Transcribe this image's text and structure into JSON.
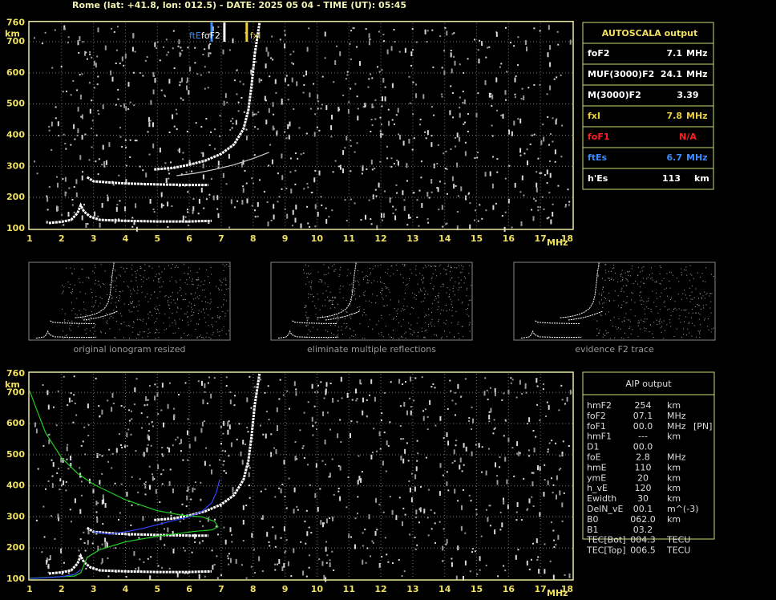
{
  "header": {
    "title": "Rome (lat: +41.8, lon: 012.5) - DATE: 2025 05 04 - TIME (UT): 05:45"
  },
  "ionograms": [
    {
      "xlim": [
        1,
        18
      ],
      "ylim": [
        100,
        760
      ],
      "xticks": [
        1,
        2,
        3,
        4,
        5,
        6,
        7,
        8,
        9,
        10,
        11,
        12,
        13,
        14,
        15,
        16,
        17,
        18
      ],
      "yticks": [
        100,
        200,
        300,
        400,
        500,
        600,
        700,
        760
      ],
      "x_unit": "MHz",
      "y_unit": "km",
      "markers": [
        "ftE",
        "foF2",
        "fxI"
      ],
      "traces": [
        {
          "color": "#ffffff",
          "x": [
            1.6,
            2.0,
            2.3,
            2.5,
            2.6,
            2.7,
            2.9,
            3.2,
            4,
            5,
            6,
            6.7
          ],
          "y": [
            118,
            122,
            128,
            150,
            175,
            155,
            138,
            128,
            125,
            123,
            123,
            125
          ]
        },
        {
          "color": "#ffffff",
          "x": [
            2.8,
            3.0,
            3.5,
            4,
            5,
            6,
            6.6
          ],
          "y": [
            265,
            252,
            248,
            245,
            242,
            240,
            240
          ]
        },
        {
          "color": "#ffffff",
          "x": [
            4.9,
            5.5,
            6.0,
            6.5,
            7.0,
            7.4,
            7.7,
            7.85,
            7.95,
            8.05,
            8.2
          ],
          "y": [
            290,
            295,
            305,
            318,
            340,
            370,
            420,
            480,
            560,
            660,
            760
          ]
        },
        {
          "color": "#cccccc",
          "x": [
            5.6,
            6.2,
            6.8,
            7.4,
            8.0,
            8.5
          ],
          "y": [
            270,
            278,
            290,
            305,
            325,
            345
          ]
        }
      ]
    },
    {
      "xlim": [
        1,
        18
      ],
      "ylim": [
        100,
        760
      ],
      "xticks": [
        1,
        2,
        3,
        4,
        5,
        6,
        7,
        8,
        9,
        10,
        11,
        12,
        13,
        14,
        15,
        16,
        17,
        18
      ],
      "yticks": [
        100,
        200,
        300,
        400,
        500,
        600,
        700,
        760
      ],
      "x_unit": "MHz",
      "y_unit": "km",
      "traces": [
        {
          "color": "#ffffff",
          "x": [
            1.6,
            2.0,
            2.3,
            2.5,
            2.6,
            2.7,
            2.9,
            3.2,
            4,
            5,
            6,
            6.7
          ],
          "y": [
            118,
            122,
            128,
            150,
            175,
            155,
            138,
            128,
            125,
            123,
            123,
            125
          ]
        },
        {
          "color": "#ffffff",
          "x": [
            2.8,
            3.0,
            3.5,
            4,
            5,
            6,
            6.6
          ],
          "y": [
            265,
            252,
            248,
            245,
            242,
            240,
            240
          ]
        },
        {
          "color": "#ffffff",
          "x": [
            4.9,
            5.5,
            6.0,
            6.5,
            7.0,
            7.4,
            7.7,
            7.85,
            7.95,
            8.05,
            8.2
          ],
          "y": [
            290,
            295,
            305,
            318,
            340,
            370,
            420,
            480,
            560,
            660,
            760
          ]
        },
        {
          "color": "#22cc22",
          "x": [
            1.0,
            1.2,
            1.5,
            2.0,
            2.5,
            3.0,
            4.0,
            5.0,
            5.8,
            6.4,
            6.8,
            6.9,
            6.7,
            6.2,
            5.0,
            4.0,
            3.2,
            2.8,
            2.6,
            2.4,
            2.0,
            1.5,
            1.0
          ],
          "y": [
            705,
            650,
            570,
            490,
            440,
            405,
            355,
            320,
            305,
            300,
            285,
            268,
            258,
            254,
            238,
            220,
            195,
            170,
            120,
            110,
            108,
            105,
            103
          ]
        },
        {
          "color": "#3344ff",
          "x": [
            3.0,
            3.5,
            4.0,
            4.5,
            5.0,
            5.5,
            6.0,
            6.4,
            6.7,
            6.85,
            6.95
          ],
          "y": [
            252,
            245,
            252,
            262,
            275,
            288,
            300,
            318,
            345,
            380,
            420
          ]
        },
        {
          "color": "#3344ff",
          "x": [
            1.0,
            1.5,
            2.0,
            2.4,
            2.6
          ],
          "y": [
            102,
            104,
            108,
            115,
            130
          ]
        }
      ]
    }
  ],
  "thumbnails": [
    "original ionogram resized",
    "eliminate multiple reflections",
    "evidence F2 trace"
  ],
  "autoscala": {
    "title": "AUTOSCALA output",
    "rows": [
      {
        "label": "foF2",
        "value": 7.1,
        "unit": "MHz",
        "color": "#ffffff"
      },
      {
        "label": "MUF(3000)F2",
        "value": 24.1,
        "unit": "MHz",
        "color": "#ffffff"
      },
      {
        "label": "M(3000)F2",
        "value": 3.39,
        "color": "#ffffff"
      },
      {
        "label": "fxI",
        "value": 7.8,
        "unit": "MHz",
        "color": "#e8d040"
      },
      {
        "label": "foF1",
        "value": "N/A",
        "color": "#ff2020"
      },
      {
        "label": "ftEs",
        "value": 6.7,
        "unit": "MHz",
        "color": "#3a8cff"
      },
      {
        "label": "h'Es",
        "value": 113,
        "unit": "km",
        "color": "#ffffff"
      }
    ]
  },
  "aip": {
    "title": "AIP output",
    "rows": [
      {
        "label": "hmF2",
        "value": "254",
        "unit": "km"
      },
      {
        "label": "foF2",
        "value": "07.1",
        "unit": "MHz"
      },
      {
        "label": "foF1",
        "value": "00.0",
        "unit": "MHz",
        "note": "[PN]"
      },
      {
        "label": "hmF1",
        "value": "---",
        "unit": "km"
      },
      {
        "label": "D1",
        "value": "00.0"
      },
      {
        "label": "foE",
        "value": "2.8",
        "unit": "MHz"
      },
      {
        "label": "hmE",
        "value": "110",
        "unit": "km"
      },
      {
        "label": "ymE",
        "value": "20",
        "unit": "km"
      },
      {
        "label": "h_vE",
        "value": "120",
        "unit": "km"
      },
      {
        "label": "Ewidth",
        "value": "30",
        "unit": "km"
      },
      {
        "label": "DelN_vE",
        "value": "00.1",
        "unit": "m^(-3)"
      },
      {
        "label": "B0",
        "value": "062.0",
        "unit": "km"
      },
      {
        "label": "B1",
        "value": "03.2"
      },
      {
        "label": "TEC[Bot]",
        "value": "004.3",
        "unit": "TECU"
      },
      {
        "label": "TEC[Top]",
        "value": "006.5",
        "unit": "TECU"
      }
    ]
  }
}
